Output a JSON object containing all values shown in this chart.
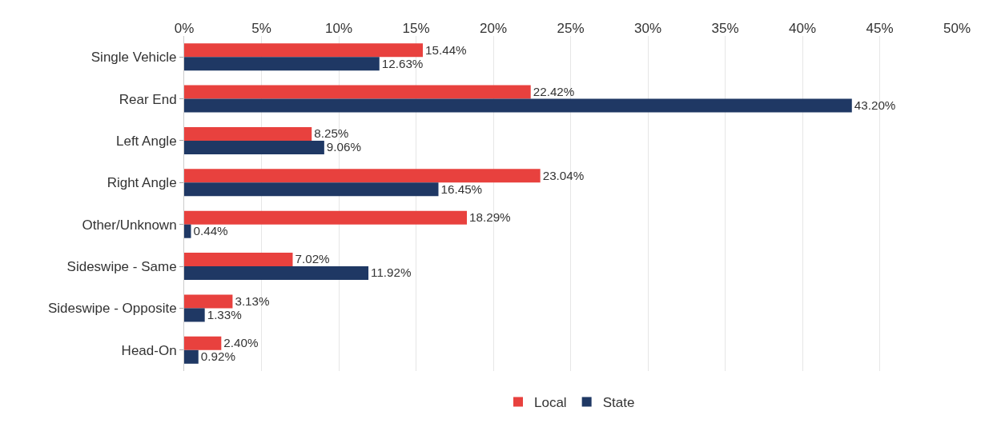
{
  "chart_data": {
    "type": "bar",
    "orientation": "horizontal",
    "categories": [
      "Single Vehicle",
      "Rear End",
      "Left Angle",
      "Right Angle",
      "Other/Unknown",
      "Sideswipe - Same",
      "Sideswipe - Opposite",
      "Head-On"
    ],
    "series": [
      {
        "name": "Local",
        "color": "#e8413e",
        "values": [
          15.44,
          22.42,
          8.25,
          23.04,
          18.29,
          7.02,
          3.13,
          2.4
        ],
        "value_labels": [
          "15.44%",
          "22.42%",
          "8.25%",
          "23.04%",
          "18.29%",
          "7.02%",
          "3.13%",
          "2.40%"
        ]
      },
      {
        "name": "State",
        "color": "#1f3864",
        "values": [
          12.63,
          43.2,
          9.06,
          16.45,
          0.44,
          11.92,
          1.33,
          0.92
        ],
        "value_labels": [
          "12.63%",
          "43.20%",
          "9.06%",
          "16.45%",
          "0.44%",
          "11.92%",
          "1.33%",
          "0.92%"
        ]
      }
    ],
    "xlim": [
      0,
      50
    ],
    "xticks": [
      {
        "value": 0,
        "label": "0%"
      },
      {
        "value": 5,
        "label": "5%"
      },
      {
        "value": 10,
        "label": "10%"
      },
      {
        "value": 15,
        "label": "15%"
      },
      {
        "value": 20,
        "label": "20%"
      },
      {
        "value": 25,
        "label": "25%"
      },
      {
        "value": 30,
        "label": "30%"
      },
      {
        "value": 35,
        "label": "35%"
      },
      {
        "value": 40,
        "label": "40%"
      },
      {
        "value": 45,
        "label": "45%"
      },
      {
        "value": 50,
        "label": "50%"
      }
    ],
    "grid": "x",
    "legend": "bottom"
  }
}
